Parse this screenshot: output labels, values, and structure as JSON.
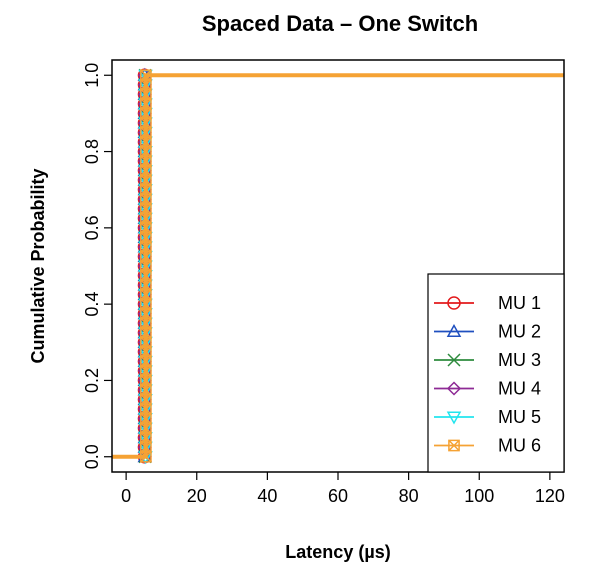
{
  "chart_data": {
    "type": "line",
    "title": "Spaced Data – One Switch",
    "xlabel": "Latency (µs)",
    "ylabel": "Cumulative Probability",
    "xlim": [
      -4,
      124
    ],
    "ylim": [
      -0.04,
      1.04
    ],
    "xticks": [
      "0",
      "20",
      "40",
      "60",
      "80",
      "100",
      "120"
    ],
    "xtick_values": [
      0,
      20,
      40,
      60,
      80,
      100,
      120
    ],
    "yticks": [
      "0.0",
      "0.2",
      "0.4",
      "0.6",
      "0.8",
      "1.0"
    ],
    "ytick_values": [
      0,
      0.2,
      0.4,
      0.6,
      0.8,
      1.0
    ],
    "grid": false,
    "legend_position": "bottom-right",
    "step_lines": true,
    "series": [
      {
        "name": "MU 1",
        "color": "#e31a1c",
        "marker": "circle",
        "x": [
          -4,
          5.2,
          5.2,
          124
        ],
        "y": [
          0,
          0,
          1,
          1
        ]
      },
      {
        "name": "MU 2",
        "color": "#1f4fbf",
        "marker": "triangle-up",
        "x": [
          -4,
          5.3,
          5.3,
          124
        ],
        "y": [
          0,
          0,
          1,
          1
        ]
      },
      {
        "name": "MU 3",
        "color": "#2e8b3e",
        "marker": "x",
        "x": [
          -4,
          5.4,
          5.4,
          124
        ],
        "y": [
          0,
          0,
          1,
          1
        ]
      },
      {
        "name": "MU 4",
        "color": "#8e2a95",
        "marker": "diamond",
        "x": [
          -4,
          5.3,
          5.3,
          124
        ],
        "y": [
          0,
          0,
          1,
          1
        ]
      },
      {
        "name": "MU 5",
        "color": "#22e5ee",
        "marker": "triangle-down",
        "x": [
          -4,
          5.5,
          5.5,
          124
        ],
        "y": [
          0,
          0,
          1,
          1
        ]
      },
      {
        "name": "MU 6",
        "color": "#f5a234",
        "marker": "box-x",
        "x": [
          -4,
          5.6,
          5.6,
          124
        ],
        "y": [
          0,
          0,
          1,
          1
        ]
      }
    ]
  }
}
